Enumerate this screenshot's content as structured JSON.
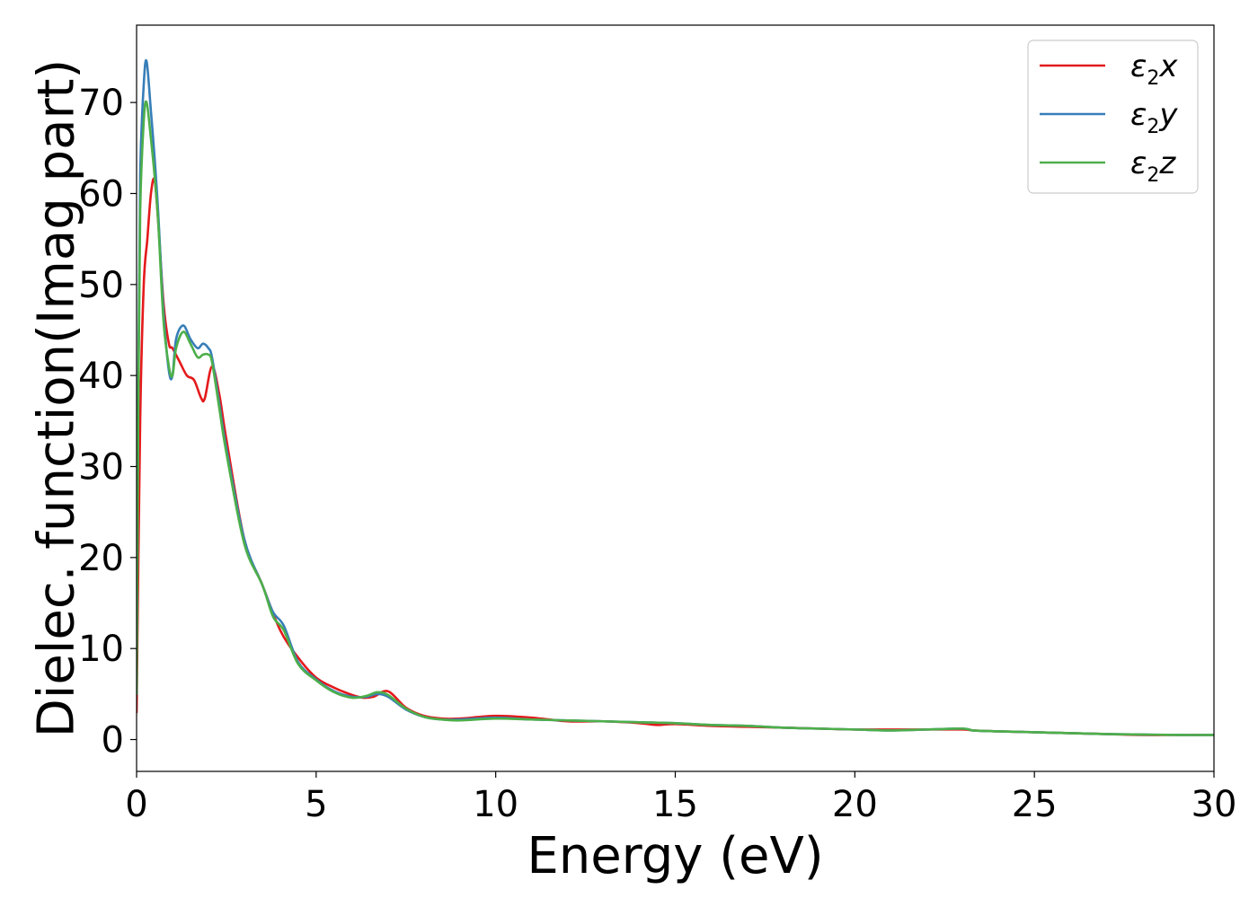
{
  "chart_data": {
    "type": "line",
    "title": "",
    "xlabel": "Energy (eV)",
    "ylabel": "Dielec. function(Imag part)",
    "xlim": [
      0,
      30
    ],
    "ylim": [
      -3.5,
      78.5
    ],
    "xticks": [
      0,
      5,
      10,
      15,
      20,
      25,
      30
    ],
    "yticks": [
      0,
      10,
      20,
      30,
      40,
      50,
      60,
      70
    ],
    "grid": false,
    "legend_position": "top-right",
    "series": [
      {
        "name": "ε2x",
        "legend": {
          "base": "ε",
          "sub": "2",
          "var": "x"
        },
        "color": "#e41a1c",
        "x": [
          0,
          0.1,
          0.2,
          0.3,
          0.4,
          0.5,
          0.6,
          0.75,
          0.9,
          1.0,
          1.2,
          1.4,
          1.6,
          1.8,
          1.9,
          2.1,
          2.3,
          2.5,
          3.0,
          3.5,
          4.0,
          4.5,
          5.0,
          5.5,
          6.0,
          6.3,
          6.6,
          7.0,
          7.5,
          8.0,
          8.5,
          9.0,
          10.0,
          11.0,
          12.0,
          13.0,
          14.0,
          14.5,
          15.0,
          16.0,
          17.0,
          18.0,
          19.0,
          20.0,
          21.0,
          22.0,
          23.0,
          23.3,
          24.0,
          25.0,
          26.0,
          27.0,
          28.0,
          29.0,
          30.0
        ],
        "y": [
          3,
          35,
          50,
          55,
          60,
          61.5,
          57,
          48,
          43.5,
          43,
          41.5,
          40,
          39.5,
          37.5,
          37.5,
          41,
          38,
          33,
          22,
          17,
          12,
          9,
          6.8,
          5.7,
          4.9,
          4.6,
          4.7,
          5.3,
          3.5,
          2.6,
          2.3,
          2.3,
          2.6,
          2.4,
          2.0,
          2.0,
          1.8,
          1.6,
          1.7,
          1.5,
          1.4,
          1.3,
          1.2,
          1.1,
          1.1,
          1.1,
          1.1,
          1.0,
          0.9,
          0.8,
          0.7,
          0.6,
          0.5,
          0.5,
          0.5
        ]
      },
      {
        "name": "ε2y",
        "legend": {
          "base": "ε",
          "sub": "2",
          "var": "y"
        },
        "color": "#377eb8",
        "x": [
          0,
          0.05,
          0.1,
          0.2,
          0.28,
          0.4,
          0.5,
          0.6,
          0.75,
          0.9,
          1.0,
          1.1,
          1.3,
          1.5,
          1.7,
          1.85,
          2.0,
          2.1,
          2.3,
          2.5,
          3.0,
          3.5,
          3.8,
          4.1,
          4.5,
          5.0,
          5.5,
          6.0,
          6.4,
          6.7,
          7.0,
          7.5,
          8.0,
          8.5,
          9.0,
          10.0,
          11.0,
          12.0,
          13.0,
          14.0,
          15.0,
          16.0,
          17.0,
          18.0,
          19.0,
          20.0,
          21.0,
          22.0,
          23.0,
          23.3,
          24.0,
          25.0,
          26.0,
          27.0,
          28.0,
          29.0,
          30.0
        ],
        "y": [
          5,
          40,
          62,
          72,
          74.5,
          69,
          64,
          58,
          47,
          40.5,
          40,
          44,
          45.5,
          44,
          43,
          43.5,
          43,
          42,
          37,
          32,
          22,
          17,
          14,
          12.5,
          8.5,
          6.6,
          5.3,
          4.7,
          4.7,
          5.0,
          4.7,
          3.3,
          2.5,
          2.2,
          2.2,
          2.4,
          2.2,
          2.1,
          2.0,
          1.9,
          1.8,
          1.6,
          1.5,
          1.3,
          1.2,
          1.1,
          1.0,
          1.1,
          1.2,
          1.0,
          0.9,
          0.8,
          0.7,
          0.6,
          0.55,
          0.5,
          0.5
        ]
      },
      {
        "name": "ε2z",
        "legend": {
          "base": "ε",
          "sub": "2",
          "var": "z"
        },
        "color": "#4daf4a",
        "x": [
          0,
          0.05,
          0.1,
          0.2,
          0.28,
          0.4,
          0.5,
          0.6,
          0.75,
          0.9,
          1.0,
          1.1,
          1.3,
          1.5,
          1.7,
          1.85,
          2.0,
          2.1,
          2.3,
          2.5,
          3.0,
          3.5,
          3.8,
          4.1,
          4.5,
          5.0,
          5.5,
          6.0,
          6.4,
          6.7,
          7.0,
          7.5,
          8.0,
          8.5,
          9.0,
          10.0,
          11.0,
          12.0,
          13.0,
          14.0,
          15.0,
          16.0,
          17.0,
          18.0,
          19.0,
          20.0,
          21.0,
          22.0,
          23.0,
          23.3,
          24.0,
          25.0,
          26.0,
          27.0,
          28.0,
          29.0,
          30.0
        ],
        "y": [
          5,
          38,
          58,
          68,
          70,
          66,
          62,
          57,
          46,
          41,
          40,
          43,
          44.8,
          43.5,
          42,
          42.3,
          42.3,
          41.5,
          36.5,
          31.5,
          21.5,
          17,
          13.5,
          12,
          8.3,
          6.5,
          5.2,
          4.6,
          4.8,
          5.2,
          4.9,
          3.4,
          2.5,
          2.2,
          2.1,
          2.3,
          2.2,
          2.1,
          2.0,
          1.9,
          1.8,
          1.6,
          1.5,
          1.3,
          1.2,
          1.1,
          1.0,
          1.1,
          1.2,
          1.0,
          0.9,
          0.8,
          0.7,
          0.6,
          0.55,
          0.5,
          0.5
        ]
      }
    ]
  }
}
